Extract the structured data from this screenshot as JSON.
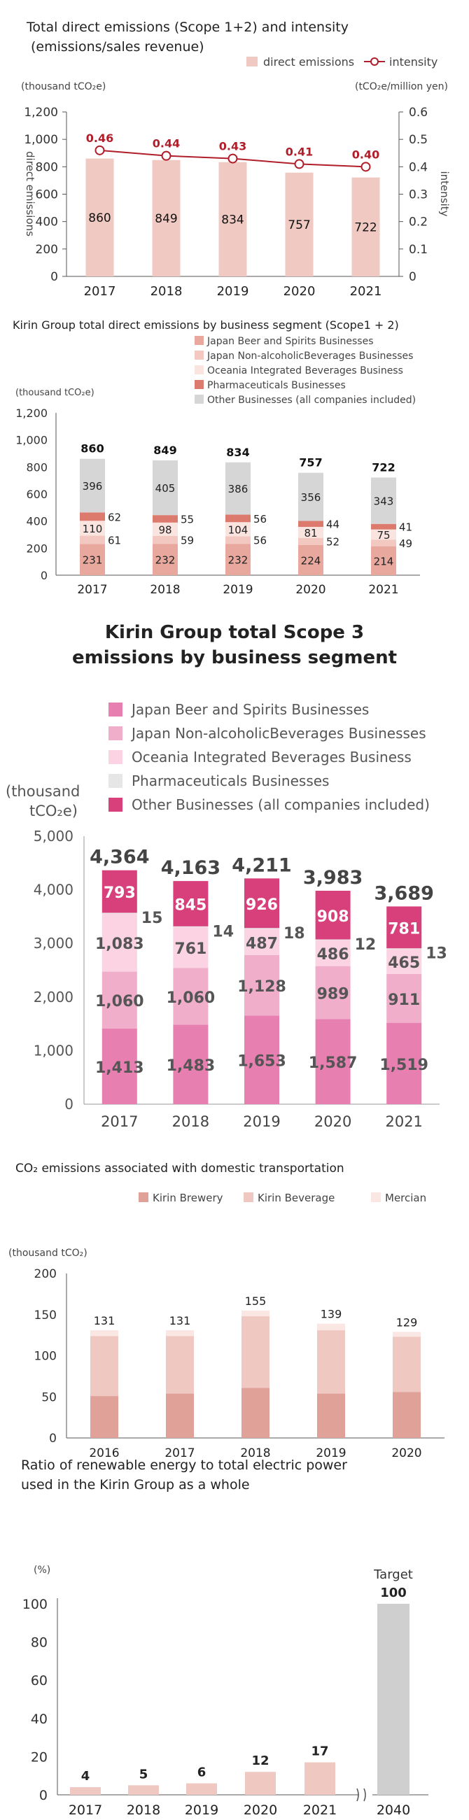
{
  "chart_data": [
    {
      "type": "bar",
      "title": "Total direct emissions (Scope 1+2) and intensity",
      "subtitle": "(emissions/sales revenue)",
      "ylabel_left": "direct emissions",
      "ylabel_right": "intensity",
      "unit_left": "(thousand tCO₂e)",
      "unit_right": "(tCO₂e/million yen)",
      "categories": [
        "2017",
        "2018",
        "2019",
        "2020",
        "2021"
      ],
      "y_ticks_left": [
        "0",
        "200",
        "400",
        "600",
        "800",
        "1,000",
        "1,200"
      ],
      "y_ticks_right": [
        "0",
        "0.1",
        "0.2",
        "0.3",
        "0.4",
        "0.5",
        "0.6"
      ],
      "ylim_left": [
        0,
        1200
      ],
      "ylim_right": [
        0,
        0.6
      ],
      "legend": [
        "direct emissions",
        "intensity"
      ],
      "bar_color": "#efc9c2",
      "line_color": "#b01e2a",
      "series": [
        {
          "name": "direct emissions",
          "values": [
            860,
            849,
            834,
            757,
            722
          ],
          "labels": [
            "860",
            "849",
            "834",
            "757",
            "722"
          ]
        },
        {
          "name": "intensity",
          "values": [
            0.46,
            0.44,
            0.43,
            0.41,
            0.4
          ],
          "labels": [
            "0.46",
            "0.44",
            "0.43",
            "0.41",
            "0.40"
          ]
        }
      ]
    },
    {
      "type": "bar",
      "stacked": true,
      "title": "Kirin Group total direct emissions by business segment (Scope1 + 2)",
      "unit": "(thousand tCO₂e)",
      "categories": [
        "2017",
        "2018",
        "2019",
        "2020",
        "2021"
      ],
      "y_ticks": [
        "0",
        "200",
        "400",
        "600",
        "800",
        "1,000",
        "1,200"
      ],
      "ylim": [
        0,
        1200
      ],
      "series": [
        {
          "name": "Japan Beer and Spirits Businesses",
          "color": "#e8a89e",
          "values": [
            231,
            232,
            232,
            224,
            214
          ],
          "labels": [
            "231",
            "232",
            "232",
            "224",
            "214"
          ]
        },
        {
          "name": "Japan Non-alcoholicBeverages Businesses",
          "color": "#f2c8c0",
          "values": [
            61,
            59,
            56,
            52,
            49
          ],
          "labels": [
            "61",
            "59",
            "56",
            "52",
            "49"
          ]
        },
        {
          "name": "Oceania Integrated Beverages Business",
          "color": "#fae4df",
          "values": [
            110,
            98,
            104,
            81,
            75
          ],
          "labels": [
            "110",
            "98",
            "104",
            "81",
            "75"
          ]
        },
        {
          "name": "Pharmaceuticals Businesses",
          "color": "#dd7a6e",
          "values": [
            62,
            55,
            56,
            44,
            41
          ],
          "labels": [
            "62",
            "55",
            "56",
            "44",
            "41"
          ]
        },
        {
          "name": "Other Businesses (all companies included)",
          "color": "#d6d6d6",
          "values": [
            396,
            405,
            386,
            356,
            343
          ],
          "labels": [
            "396",
            "405",
            "386",
            "356",
            "343"
          ]
        }
      ],
      "totals": [
        "860",
        "849",
        "834",
        "757",
        "722"
      ]
    },
    {
      "type": "bar",
      "stacked": true,
      "title_lines": [
        "Kirin Group total Scope 3",
        "emissions by business segment"
      ],
      "unit_lines": [
        "(thousand",
        "tCO₂e)"
      ],
      "categories": [
        "2017",
        "2018",
        "2019",
        "2020",
        "2021"
      ],
      "y_ticks": [
        "0",
        "1,000",
        "2,000",
        "3,000",
        "4,000",
        "5,000"
      ],
      "ylim": [
        0,
        5000
      ],
      "series": [
        {
          "name": "Japan Beer and Spirits Businesses",
          "color": "#e77fb0",
          "values": [
            1413,
            1483,
            1653,
            1587,
            1519
          ],
          "labels": [
            "1,413",
            "1,483",
            "1,653",
            "1,587",
            "1,519"
          ]
        },
        {
          "name": "Japan Non-alcoholicBeverages Businesses",
          "color": "#f1aeca",
          "values": [
            1060,
            1060,
            1128,
            989,
            911
          ],
          "labels": [
            "1,060",
            "1,060",
            "1,128",
            "989",
            "911"
          ]
        },
        {
          "name": "Oceania Integrated Beverages Business",
          "color": "#fbd3e2",
          "values": [
            1083,
            761,
            487,
            486,
            465
          ],
          "labels": [
            "1,083",
            "761",
            "487",
            "486",
            "465"
          ]
        },
        {
          "name": "Pharmaceuticals Businesses",
          "color": "#e6e6e6",
          "values": [
            15,
            14,
            18,
            12,
            13
          ],
          "labels": [
            "15",
            "14",
            "18",
            "12",
            "13"
          ]
        },
        {
          "name": "Other Businesses (all companies included)",
          "color": "#d8407c",
          "values": [
            793,
            845,
            926,
            908,
            781
          ],
          "labels": [
            "793",
            "845",
            "926",
            "908",
            "781"
          ]
        }
      ],
      "totals": [
        "4,364",
        "4,163",
        "4,211",
        "3,983",
        "3,689"
      ]
    },
    {
      "type": "bar",
      "stacked": true,
      "title": "CO₂ emissions associated with domestic transportation",
      "unit": "(thousand tCO₂)",
      "categories": [
        "2016",
        "2017",
        "2018",
        "2019",
        "2020"
      ],
      "y_ticks": [
        "0",
        "50",
        "100",
        "150",
        "200"
      ],
      "ylim": [
        0,
        200
      ],
      "series": [
        {
          "name": "Kirin Brewery",
          "color": "#e0a199",
          "values": [
            51,
            54,
            61,
            54,
            56
          ]
        },
        {
          "name": "Kirin Beverage",
          "color": "#efc8c1",
          "values": [
            73,
            70,
            87,
            77,
            67
          ]
        },
        {
          "name": "Mercian",
          "color": "#fae6e2",
          "values": [
            7,
            7,
            7,
            8,
            6
          ]
        }
      ],
      "totals": [
        "131",
        "131",
        "155",
        "139",
        "129"
      ]
    },
    {
      "type": "bar",
      "title_lines": [
        "Ratio of renewable energy to total electric power",
        "used in the Kirin Group as a whole"
      ],
      "unit": "(%)",
      "categories": [
        "2017",
        "2018",
        "2019",
        "2020",
        "2021",
        "2040"
      ],
      "y_ticks": [
        "0",
        "20",
        "40",
        "60",
        "80",
        "100"
      ],
      "ylim": [
        0,
        100
      ],
      "values": [
        4,
        5,
        6,
        12,
        17,
        100
      ],
      "labels": [
        "4",
        "5",
        "6",
        "12",
        "17",
        "100"
      ],
      "bar_color": "#efc8c1",
      "target_color": "#cfcfcf",
      "target_label": "Target"
    }
  ]
}
